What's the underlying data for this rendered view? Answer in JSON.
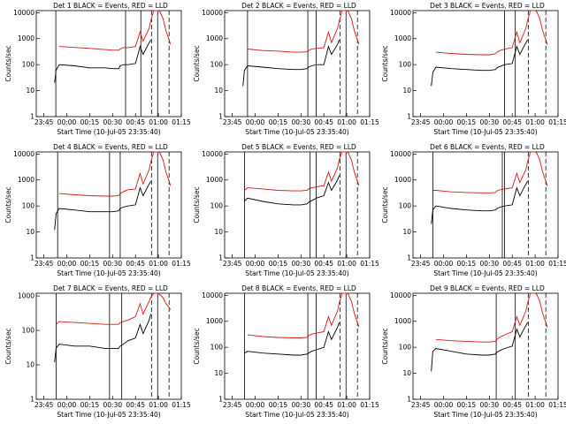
{
  "figure": {
    "background": "#ffffff",
    "colors": {
      "events": "#000000",
      "lld": "#d81818",
      "axis": "#000000"
    }
  },
  "panels": [
    {
      "title": "Det  1 BLACK = Events, RED = LLD",
      "det_number": "1"
    },
    {
      "title": "Det  2 BLACK = Events, RED = LLD",
      "det_number": "2"
    },
    {
      "title": "Det  3 BLACK = Events, RED = LLD",
      "det_number": "3"
    },
    {
      "title": "Det  4 BLACK = Events, RED = LLD",
      "det_number": "4"
    },
    {
      "title": "Det  5 BLACK = Events, RED = LLD",
      "det_number": "5"
    },
    {
      "title": "Det  6 BLACK = Events, RED = LLD",
      "det_number": "6"
    },
    {
      "title": "Det  7 BLACK = Events, RED = LLD",
      "det_number": "7"
    },
    {
      "title": "Det  8 BLACK = Events, RED = LLD",
      "det_number": "8"
    },
    {
      "title": "Det  9 BLACK = Events, RED = LLD",
      "det_number": "9"
    }
  ],
  "axes": {
    "xlabel": "Start Time (10-Jul-05 23:35:40)",
    "ylabel": "Counts/sec",
    "xticks": [
      "23:45",
      "00:00",
      "00:15",
      "00:30",
      "00:45",
      "01:00",
      "01:15"
    ],
    "yticks_log": [
      "1",
      "10",
      "100",
      "1000",
      "10000"
    ]
  },
  "chart_data": [
    {
      "type": "line",
      "title": "Det  1 BLACK = Events, RED = LLD",
      "xlabel": "Start Time (10-Jul-05 23:35:40)",
      "ylabel": "Counts/sec",
      "ylim": [
        1,
        12000
      ],
      "yscale": "log",
      "x_minutes": [
        0,
        7,
        8,
        10,
        20,
        30,
        40,
        45,
        49,
        50,
        52,
        55,
        60,
        63,
        65,
        69,
        70,
        72,
        75,
        76,
        78,
        80,
        83
      ],
      "series": [
        {
          "name": "Events",
          "values": [
            null,
            20,
            60,
            100,
            90,
            75,
            75,
            70,
            70,
            90,
            100,
            100,
            110,
            500,
            250,
            700,
            900,
            null,
            null,
            null,
            null,
            null,
            null
          ]
        },
        {
          "name": "LLD",
          "values": [
            null,
            null,
            null,
            500,
            460,
            420,
            380,
            360,
            360,
            400,
            450,
            450,
            500,
            1800,
            800,
            2500,
            5000,
            12000,
            12000,
            11000,
            6000,
            2000,
            600
          ]
        }
      ],
      "vlines_solid": [
        7.8,
        53.5,
        63.5,
        74.5
      ],
      "vlines_dashed": [
        70.5,
        82
      ]
    },
    {
      "type": "line",
      "title": "Det  2 BLACK = Events, RED = LLD",
      "xlabel": "Start Time (10-Jul-05 23:35:40)",
      "ylabel": "Counts/sec",
      "ylim": [
        1,
        12000
      ],
      "yscale": "log",
      "x_minutes": [
        0,
        7,
        8,
        10,
        20,
        30,
        40,
        45,
        49,
        50,
        52,
        55,
        60,
        63,
        65,
        69,
        70,
        72,
        75,
        76,
        78,
        80,
        83
      ],
      "series": [
        {
          "name": "Events",
          "values": [
            null,
            15,
            60,
            90,
            80,
            70,
            65,
            65,
            70,
            80,
            90,
            100,
            100,
            500,
            250,
            600,
            900,
            null,
            null,
            null,
            null,
            null,
            null
          ]
        },
        {
          "name": "LLD",
          "values": [
            null,
            null,
            null,
            400,
            350,
            330,
            300,
            300,
            310,
            350,
            400,
            420,
            450,
            1800,
            700,
            2500,
            4500,
            12000,
            12000,
            11000,
            6000,
            2000,
            600
          ]
        }
      ],
      "vlines_solid": [
        10,
        49.5,
        55,
        74.5
      ],
      "vlines_dashed": [
        70.5,
        82
      ]
    },
    {
      "type": "line",
      "title": "Det  3 BLACK = Events, RED = LLD",
      "xlabel": "Start Time (10-Jul-05 23:35:40)",
      "ylabel": "Counts/sec",
      "ylim": [
        1,
        12000
      ],
      "yscale": "log",
      "x_minutes": [
        0,
        7,
        8,
        10,
        20,
        30,
        40,
        45,
        49,
        50,
        52,
        55,
        60,
        63,
        65,
        69,
        70,
        72,
        75,
        76,
        78,
        80,
        83
      ],
      "series": [
        {
          "name": "Events",
          "values": [
            null,
            15,
            50,
            80,
            70,
            65,
            60,
            60,
            65,
            75,
            85,
            100,
            110,
            500,
            250,
            700,
            900,
            null,
            null,
            null,
            null,
            null,
            null
          ]
        },
        {
          "name": "LLD",
          "values": [
            null,
            null,
            null,
            300,
            270,
            250,
            240,
            240,
            260,
            300,
            350,
            400,
            450,
            1800,
            700,
            2500,
            5000,
            12000,
            12000,
            11000,
            6000,
            2000,
            600
          ]
        }
      ],
      "vlines_solid": [
        55,
        62
      ],
      "vlines_dashed": [
        70.5,
        82
      ]
    },
    {
      "type": "line",
      "title": "Det  4 BLACK = Events, RED = LLD",
      "xlabel": "Start Time (10-Jul-05 23:35:40)",
      "ylabel": "Counts/sec",
      "ylim": [
        1,
        12000
      ],
      "yscale": "log",
      "x_minutes": [
        0,
        7,
        8,
        10,
        20,
        30,
        40,
        45,
        49,
        50,
        52,
        55,
        60,
        63,
        65,
        69,
        70,
        72,
        75,
        76,
        78,
        80,
        83
      ],
      "series": [
        {
          "name": "Events",
          "values": [
            null,
            12,
            50,
            80,
            70,
            60,
            60,
            60,
            65,
            80,
            90,
            100,
            110,
            500,
            250,
            700,
            900,
            null,
            null,
            null,
            null,
            null,
            null
          ]
        },
        {
          "name": "LLD",
          "values": [
            null,
            null,
            null,
            300,
            270,
            250,
            240,
            240,
            250,
            300,
            350,
            420,
            450,
            1800,
            700,
            2500,
            5000,
            12000,
            12000,
            11000,
            6000,
            2000,
            600
          ]
        }
      ],
      "vlines_solid": [
        9,
        43,
        50,
        74.5
      ],
      "vlines_dashed": [
        70.5,
        82
      ]
    },
    {
      "type": "line",
      "title": "Det  5 BLACK = Events, RED = LLD",
      "xlabel": "Start Time (10-Jul-05 23:35:40)",
      "ylabel": "Counts/sec",
      "ylim": [
        1,
        12000
      ],
      "yscale": "log",
      "x_minutes": [
        0,
        7,
        8,
        10,
        20,
        30,
        40,
        45,
        49,
        50,
        52,
        55,
        60,
        63,
        65,
        69,
        70,
        72,
        75,
        76,
        78,
        80,
        83
      ],
      "series": [
        {
          "name": "Events",
          "values": [
            null,
            null,
            150,
            200,
            150,
            120,
            110,
            110,
            120,
            140,
            160,
            200,
            250,
            800,
            400,
            1000,
            1500,
            null,
            null,
            null,
            null,
            null,
            null
          ]
        },
        {
          "name": "LLD",
          "values": [
            null,
            null,
            400,
            500,
            450,
            400,
            380,
            380,
            400,
            450,
            500,
            550,
            600,
            2000,
            900,
            3000,
            6000,
            12000,
            12000,
            11000,
            6000,
            2000,
            600
          ]
        }
      ],
      "vlines_solid": [
        8,
        51,
        55,
        74.5
      ],
      "vlines_dashed": [
        70.5,
        82
      ]
    },
    {
      "type": "line",
      "title": "Det  6 BLACK = Events, RED = LLD",
      "xlabel": "Start Time (10-Jul-05 23:35:40)",
      "ylabel": "Counts/sec",
      "ylim": [
        1,
        12000
      ],
      "yscale": "log",
      "x_minutes": [
        0,
        7,
        8,
        10,
        20,
        30,
        40,
        45,
        49,
        50,
        52,
        55,
        60,
        63,
        65,
        69,
        70,
        72,
        75,
        76,
        78,
        80,
        83
      ],
      "series": [
        {
          "name": "Events",
          "values": [
            null,
            20,
            70,
            100,
            80,
            70,
            65,
            65,
            70,
            80,
            90,
            100,
            110,
            500,
            250,
            700,
            900,
            null,
            null,
            null,
            null,
            null,
            null
          ]
        },
        {
          "name": "LLD",
          "values": [
            null,
            null,
            400,
            400,
            350,
            330,
            320,
            320,
            330,
            380,
            420,
            450,
            500,
            1800,
            800,
            2500,
            5000,
            12000,
            12000,
            11000,
            6000,
            2000,
            600
          ]
        }
      ],
      "vlines_solid": [
        8,
        53.5,
        55
      ],
      "vlines_dashed": [
        70.5,
        82
      ]
    },
    {
      "type": "line",
      "title": "Det  7 BLACK = Events, RED = LLD",
      "xlabel": "Start Time (10-Jul-05 23:35:40)",
      "ylabel": "Counts/sec",
      "ylim": [
        1,
        1200
      ],
      "yscale": "log",
      "x_minutes": [
        0,
        7,
        8,
        10,
        20,
        30,
        40,
        45,
        49,
        50,
        52,
        55,
        60,
        63,
        65,
        69,
        70,
        72,
        75,
        76,
        78,
        80,
        83
      ],
      "series": [
        {
          "name": "Events",
          "values": [
            null,
            12,
            30,
            40,
            35,
            35,
            30,
            30,
            30,
            35,
            40,
            50,
            60,
            150,
            80,
            200,
            300,
            null,
            null,
            null,
            null,
            null,
            null
          ]
        },
        {
          "name": "LLD",
          "values": [
            null,
            null,
            150,
            180,
            170,
            160,
            150,
            150,
            150,
            170,
            180,
            200,
            250,
            600,
            300,
            700,
            900,
            1200,
            1200,
            1100,
            900,
            600,
            400
          ]
        }
      ],
      "vlines_solid": [
        8,
        43,
        51,
        74.5
      ],
      "vlines_dashed": [
        70.5,
        82
      ]
    },
    {
      "type": "line",
      "title": "Det  8 BLACK = Events, RED = LLD",
      "xlabel": "Start Time (10-Jul-05 23:35:40)",
      "ylabel": "Counts/sec",
      "ylim": [
        1,
        12000
      ],
      "yscale": "log",
      "x_minutes": [
        0,
        7,
        8,
        10,
        20,
        30,
        40,
        45,
        49,
        50,
        52,
        55,
        60,
        63,
        65,
        69,
        70,
        72,
        75,
        76,
        78,
        80,
        83
      ],
      "series": [
        {
          "name": "Events",
          "values": [
            null,
            null,
            60,
            70,
            60,
            55,
            50,
            50,
            55,
            60,
            70,
            80,
            100,
            400,
            200,
            600,
            900,
            null,
            null,
            null,
            null,
            null,
            null
          ]
        },
        {
          "name": "LLD",
          "values": [
            null,
            null,
            null,
            300,
            260,
            240,
            230,
            230,
            240,
            280,
            320,
            350,
            400,
            1500,
            700,
            2500,
            5000,
            12000,
            12000,
            11000,
            6000,
            2000,
            600
          ]
        }
      ],
      "vlines_solid": [
        8,
        49.5,
        55,
        74.5
      ],
      "vlines_dashed": [
        70.5,
        82
      ]
    },
    {
      "type": "line",
      "title": "Det  9 BLACK = Events, RED = LLD",
      "xlabel": "Start Time (10-Jul-05 23:35:40)",
      "ylabel": "Counts/sec",
      "ylim": [
        1,
        12000
      ],
      "yscale": "log",
      "x_minutes": [
        0,
        7,
        8,
        10,
        20,
        30,
        40,
        45,
        49,
        50,
        52,
        55,
        60,
        63,
        65,
        69,
        70,
        72,
        75,
        76,
        78,
        80,
        83
      ],
      "series": [
        {
          "name": "Events",
          "values": [
            null,
            12,
            70,
            90,
            70,
            55,
            50,
            50,
            55,
            65,
            75,
            90,
            110,
            500,
            250,
            700,
            900,
            null,
            null,
            null,
            null,
            null,
            null
          ]
        },
        {
          "name": "LLD",
          "values": [
            null,
            null,
            null,
            200,
            180,
            170,
            160,
            160,
            170,
            200,
            250,
            300,
            400,
            1500,
            700,
            2500,
            5000,
            12000,
            12000,
            11000,
            6000,
            2000,
            600
          ]
        }
      ],
      "vlines_solid": [
        49.5,
        62
      ],
      "vlines_dashed": [
        70.5,
        82
      ]
    }
  ]
}
